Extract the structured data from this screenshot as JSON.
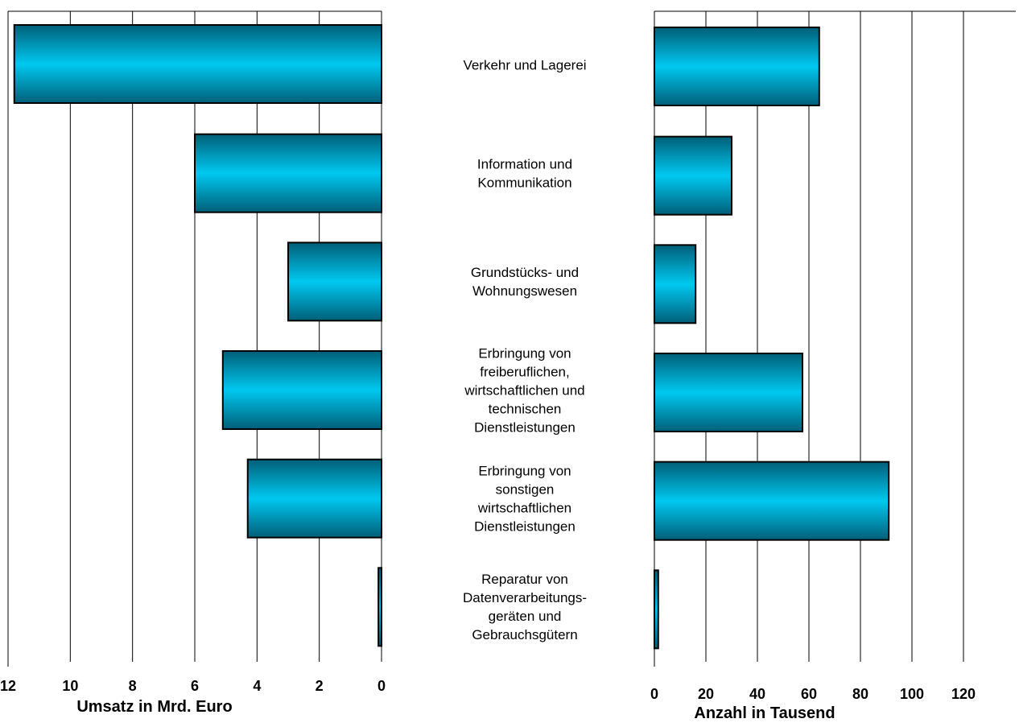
{
  "chart_data": [
    {
      "type": "bar",
      "orientation": "horizontal",
      "xlabel": "Umsatz in Mrd. Euro",
      "xlim": [
        0,
        12
      ],
      "x_reversed": true,
      "ticks": [
        "12",
        "10",
        "8",
        "6",
        "4",
        "2",
        "0"
      ],
      "grid": true,
      "categories": [
        "Verkehr und Lagerei",
        "Information und Kommunikation",
        "Grundstücks- und Wohnungswesen",
        "Erbringung von freiberuflichen, wirtschaftlichen und technischen Dienstleistungen",
        "Erbringung von sonstigen wirtschaftlichen Dienstleistungen",
        "Reparatur von Datenverarbeitungs-geräten und Gebrauchsgütern"
      ],
      "values": [
        11.8,
        6.0,
        3.0,
        5.1,
        4.3,
        0.1
      ],
      "color": "#00c8f0"
    },
    {
      "type": "bar",
      "orientation": "horizontal",
      "xlabel": "Anzahl in Tausend",
      "xlim": [
        0,
        120
      ],
      "ticks": [
        "0",
        "20",
        "40",
        "60",
        "80",
        "100",
        "120"
      ],
      "grid": true,
      "categories": [
        "Verkehr und Lagerei",
        "Information und Kommunikation",
        "Grundstücks- und Wohnungswesen",
        "Erbringung von freiberuflichen, wirtschaftlichen und technischen Dienstleistungen",
        "Erbringung von sonstigen wirtschaftlichen Dienstleistungen",
        "Reparatur von Datenverarbeitungs-geräten und Gebrauchsgütern"
      ],
      "values": [
        64,
        30,
        16,
        57.5,
        91,
        1.5
      ],
      "color": "#00c8f0"
    }
  ],
  "category_labels": [
    [
      "Verkehr und Lagerei"
    ],
    [
      "Information und",
      "Kommunikation"
    ],
    [
      "Grundstücks- und",
      "Wohnungswesen"
    ],
    [
      "Erbringung von",
      "freiberuflichen,",
      "wirtschaftlichen und",
      "technischen",
      "Dienstleistungen"
    ],
    [
      "Erbringung von",
      "sonstigen",
      "wirtschaftlichen",
      "Dienstleistungen"
    ],
    [
      "Reparatur von",
      "Datenverarbeitungs-",
      "geräten und",
      "Gebrauchsgütern"
    ]
  ]
}
